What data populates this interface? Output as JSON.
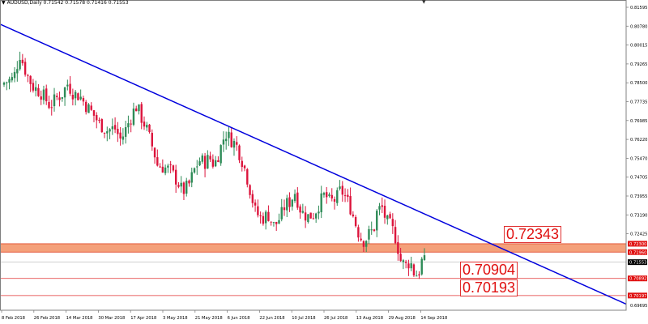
{
  "header": {
    "symbol_line": "AUDUSD,Daily  0.71542 0.71578 0.71416 0.71553"
  },
  "level_boxes": [
    {
      "label": "0.72343"
    },
    {
      "label": "0.70904"
    },
    {
      "label": "0.70193"
    }
  ],
  "chart_data": {
    "type": "candlestick",
    "symbol": "AUDUSD",
    "timeframe": "Daily",
    "ylim": [
      0.696,
      0.822
    ],
    "y_tick_labels": [
      "0.81595",
      "0.80780",
      "0.80015",
      "0.79265",
      "0.78500",
      "0.77735",
      "0.76985",
      "0.76220",
      "0.75470",
      "0.74705",
      "0.73955",
      "0.73190",
      "0.72425"
    ],
    "x_tick_labels": [
      "8 Feb 2018",
      "26 Feb 2018",
      "14 Mar 2018",
      "30 Mar 2018",
      "17 Apr 2018",
      "3 May 2018",
      "21 May 2018",
      "6 Jun 2018",
      "22 Jun 2018",
      "10 Jul 2018",
      "26 Jul 2018",
      "13 Aug 2018",
      "29 Aug 2018",
      "14 Sep 2018"
    ],
    "price_tags": [
      {
        "label": "0.72300",
        "value": 0.723,
        "color": "#e01010"
      },
      {
        "label": "0.71960",
        "value": 0.7196,
        "color": "#e01010"
      },
      {
        "label": "0.71553",
        "value": 0.71553,
        "color": "#000000"
      },
      {
        "label": "0.70892",
        "value": 0.70892,
        "color": "#e01010"
      },
      {
        "label": "0.70197",
        "value": 0.70197,
        "color": "#e01010"
      }
    ],
    "last_price": 0.71553,
    "zone": {
      "from": 0.7196,
      "to": 0.723,
      "color": "#f4a07a"
    },
    "levels": [
      {
        "value": 0.70892,
        "color": "#e03030"
      },
      {
        "value": 0.70197,
        "color": "#e03030"
      }
    ],
    "trendline": {
      "from": {
        "date": "8 Feb 2018",
        "value": 0.8122
      },
      "to": {
        "date": "20 Oct 2018",
        "value": 0.6985
      },
      "color": "#0000dd"
    },
    "up_color": "#2e8b57",
    "down_color": "#dc143c",
    "close_path": [
      [
        0,
        0.7885
      ],
      [
        6,
        0.79
      ],
      [
        10,
        0.8
      ],
      [
        14,
        0.7925
      ],
      [
        18,
        0.787
      ],
      [
        24,
        0.784
      ],
      [
        29,
        0.779
      ],
      [
        33,
        0.782
      ],
      [
        37,
        0.784
      ],
      [
        40,
        0.788
      ],
      [
        44,
        0.784
      ],
      [
        48,
        0.783
      ],
      [
        52,
        0.779
      ],
      [
        56,
        0.776
      ],
      [
        60,
        0.772
      ],
      [
        65,
        0.769
      ],
      [
        70,
        0.77
      ],
      [
        74,
        0.765
      ],
      [
        78,
        0.771
      ],
      [
        82,
        0.777
      ],
      [
        84,
        0.779
      ],
      [
        87,
        0.774
      ],
      [
        90,
        0.77
      ],
      [
        93,
        0.764
      ],
      [
        95,
        0.76
      ],
      [
        97,
        0.755
      ],
      [
        101,
        0.754
      ],
      [
        105,
        0.753
      ],
      [
        110,
        0.748
      ],
      [
        113,
        0.744
      ],
      [
        117,
        0.747
      ],
      [
        121,
        0.754
      ],
      [
        124,
        0.757
      ],
      [
        127,
        0.756
      ],
      [
        130,
        0.758
      ],
      [
        133,
        0.755
      ],
      [
        136,
        0.76
      ],
      [
        140,
        0.768
      ],
      [
        144,
        0.765
      ],
      [
        147,
        0.763
      ],
      [
        150,
        0.758
      ],
      [
        153,
        0.752
      ],
      [
        156,
        0.744
      ],
      [
        159,
        0.736
      ],
      [
        163,
        0.733
      ],
      [
        167,
        0.735
      ],
      [
        171,
        0.73
      ],
      [
        175,
        0.734
      ],
      [
        178,
        0.739
      ],
      [
        181,
        0.74
      ],
      [
        184,
        0.744
      ],
      [
        188,
        0.736
      ],
      [
        192,
        0.734
      ],
      [
        196,
        0.735
      ],
      [
        200,
        0.74
      ],
      [
        203,
        0.743
      ],
      [
        206,
        0.74
      ],
      [
        210,
        0.741
      ],
      [
        213,
        0.745
      ],
      [
        216,
        0.742
      ],
      [
        219,
        0.738
      ],
      [
        222,
        0.732
      ],
      [
        225,
        0.726
      ],
      [
        228,
        0.724
      ],
      [
        231,
        0.727
      ],
      [
        234,
        0.729
      ],
      [
        236,
        0.736
      ],
      [
        239,
        0.738
      ],
      [
        242,
        0.732
      ],
      [
        245,
        0.73
      ],
      [
        248,
        0.725
      ],
      [
        251,
        0.716
      ],
      [
        254,
        0.714
      ],
      [
        257,
        0.716
      ],
      [
        260,
        0.71
      ],
      [
        263,
        0.712
      ],
      [
        264,
        0.716
      ],
      [
        266,
        0.7155
      ]
    ]
  }
}
